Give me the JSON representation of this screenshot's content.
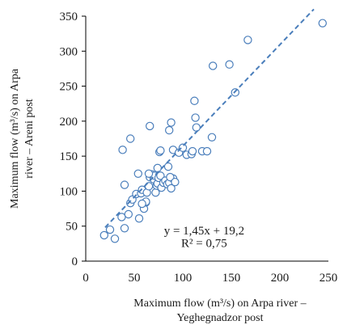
{
  "chart_data": {
    "type": "scatter",
    "xlabel_lines": [
      "Maximum flow (m³/s) on Arpa river –",
      "Yeghegnadzor post"
    ],
    "ylabel_lines": [
      "Maximum flow (m³/s) on Arpa",
      "river – Areni post"
    ],
    "xlim": [
      0,
      250
    ],
    "ylim": [
      0,
      350
    ],
    "x_ticks": [
      0,
      50,
      100,
      150,
      200,
      250
    ],
    "y_ticks": [
      0,
      50,
      100,
      150,
      200,
      250,
      300,
      350
    ],
    "x_tick_labels": [
      "0",
      "50",
      "100",
      "150",
      "200",
      "250"
    ],
    "y_tick_labels": [
      "0",
      "50",
      "100",
      "150",
      "200",
      "250",
      "300",
      "350"
    ],
    "grid": false,
    "legend": false,
    "marker_color": "#4a7ebb",
    "trendline": {
      "slope": 1.45,
      "intercept": 19.2,
      "x_range": [
        20,
        235
      ],
      "style": "dashed",
      "color": "#4a7ebb"
    },
    "annotation": {
      "equation": "y = 1,45x + 19,2",
      "r_squared": "R² = 0,75"
    },
    "points": [
      [
        19,
        37
      ],
      [
        25,
        45
      ],
      [
        30,
        32
      ],
      [
        37,
        63
      ],
      [
        40,
        47
      ],
      [
        44,
        67
      ],
      [
        46,
        83
      ],
      [
        48,
        88
      ],
      [
        52,
        96
      ],
      [
        55,
        61
      ],
      [
        57,
        97
      ],
      [
        58,
        102
      ],
      [
        60,
        75
      ],
      [
        62,
        84
      ],
      [
        63,
        98
      ],
      [
        65,
        107
      ],
      [
        66,
        120
      ],
      [
        68,
        124
      ],
      [
        70,
        117
      ],
      [
        71,
        122
      ],
      [
        72,
        98
      ],
      [
        73,
        108
      ],
      [
        74,
        111
      ],
      [
        75,
        119
      ],
      [
        77,
        122
      ],
      [
        78,
        105
      ],
      [
        80,
        112
      ],
      [
        82,
        115
      ],
      [
        84,
        110
      ],
      [
        86,
        112
      ],
      [
        88,
        104
      ],
      [
        90,
        118
      ],
      [
        38,
        159
      ],
      [
        40,
        109
      ],
      [
        46,
        175
      ],
      [
        54,
        125
      ],
      [
        65,
        125
      ],
      [
        66,
        193
      ],
      [
        74,
        133
      ],
      [
        76,
        156
      ],
      [
        77,
        158
      ],
      [
        85,
        135
      ],
      [
        86,
        187
      ],
      [
        87,
        120
      ],
      [
        88,
        198
      ],
      [
        90,
        159
      ],
      [
        96,
        155
      ],
      [
        100,
        162
      ],
      [
        104,
        152
      ],
      [
        109,
        153
      ],
      [
        110,
        157
      ],
      [
        112,
        229
      ],
      [
        114,
        191
      ],
      [
        113,
        205
      ],
      [
        120,
        157
      ],
      [
        125,
        157
      ],
      [
        130,
        177
      ],
      [
        131,
        279
      ],
      [
        148,
        281
      ],
      [
        154,
        241
      ],
      [
        167,
        316
      ],
      [
        244,
        340
      ],
      [
        62,
        85
      ],
      [
        92,
        113
      ],
      [
        58,
        82
      ]
    ]
  }
}
